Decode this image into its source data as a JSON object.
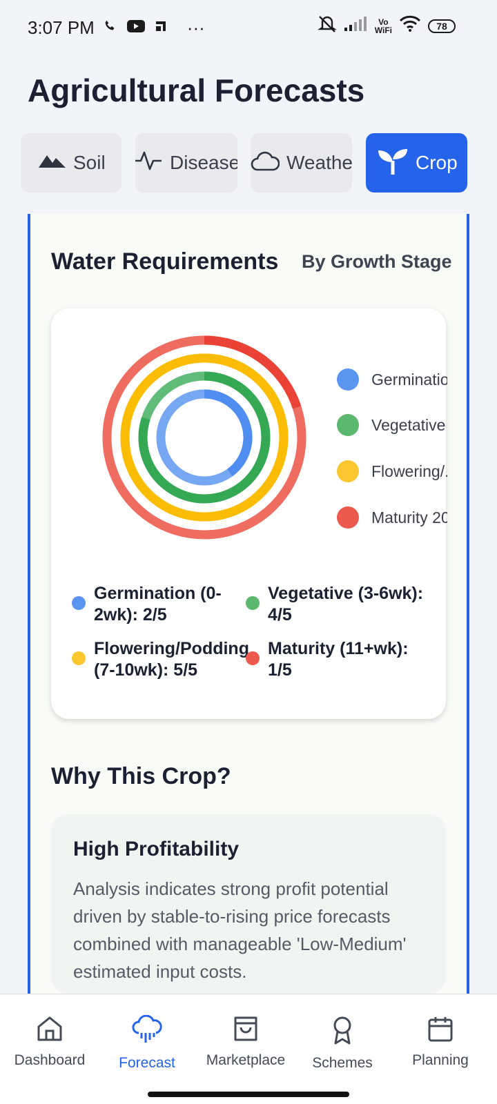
{
  "status_bar": {
    "time": "3:07 PM",
    "more": "···",
    "vo_wifi_top": "Vo",
    "vo_wifi_bottom": "WiFi",
    "battery": "78"
  },
  "page_title": "Agricultural Forecasts",
  "tabs": [
    {
      "label": "Soil",
      "icon": "mountain-icon",
      "active": false
    },
    {
      "label": "Disease",
      "icon": "activity-pulse-icon",
      "active": false
    },
    {
      "label": "Weather",
      "icon": "cloud-icon",
      "active": false
    },
    {
      "label": "Crop",
      "icon": "sprout-icon",
      "active": true
    }
  ],
  "water": {
    "title": "Water Requirements",
    "subtitle": "By Growth Stage"
  },
  "chart_data": {
    "type": "radial-bar",
    "max": 5,
    "series": [
      {
        "name": "Germination (0-2wk): 2/5",
        "value": 2,
        "color": "#4f8ef0"
      },
      {
        "name": "Vegetative (3-6wk): 4/5",
        "value": 4,
        "color": "#34a853"
      },
      {
        "name": "Flowering/Podding (7-10wk): 5/5",
        "value": 5,
        "color": "#fbbc04"
      },
      {
        "name": "Maturity (11+wk): 1/5",
        "value": 1,
        "color": "#ea4335"
      }
    ],
    "legend_placement": "right"
  },
  "chart_legend": [
    {
      "label": "Germinatio",
      "color": "#5b95f2"
    },
    {
      "label": "Vegetative",
      "color": "#5cb86f"
    },
    {
      "label": "Flowering/.",
      "color": "#fbc730"
    },
    {
      "label": "Maturity 20",
      "color": "#ec5a4e"
    }
  ],
  "stages": [
    {
      "label": "Germination (0-2wk): 2/5",
      "color": "#5b95f2"
    },
    {
      "label": "Vegetative (3-6wk): 4/5",
      "color": "#5cb86f"
    },
    {
      "label": "Flowering/Podding (7-10wk): 5/5",
      "color": "#fbc730"
    },
    {
      "label": "Maturity (11+wk): 1/5",
      "color": "#ec5a4e"
    }
  ],
  "why": {
    "title": "Why This Crop?",
    "card_title": "High Profitability",
    "card_text": "Analysis indicates strong profit potential driven by stable-to-rising price forecasts combined with manageable 'Low-Medium' estimated input costs."
  },
  "nav": [
    {
      "label": "Dashboard",
      "icon": "home-icon",
      "active": false
    },
    {
      "label": "Forecast",
      "icon": "cloud-rain-icon",
      "active": true
    },
    {
      "label": "Marketplace",
      "icon": "shopping-bag-icon",
      "active": false
    },
    {
      "label": "Schemes",
      "icon": "award-icon",
      "active": false
    },
    {
      "label": "Planning",
      "icon": "calendar-icon",
      "active": false
    }
  ],
  "colors": {
    "accent": "#2563eb",
    "text": "#1b2133"
  }
}
